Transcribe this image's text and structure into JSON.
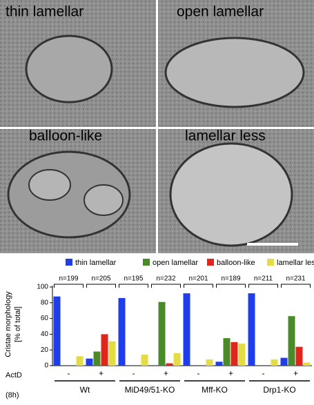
{
  "micrographs": {
    "labels": [
      "thin lamellar",
      "open lamellar",
      "balloon-like",
      "lamellar less"
    ]
  },
  "chart_data": {
    "type": "bar",
    "y_label": [
      "Cristae morphology",
      "[% of total]"
    ],
    "row_label": [
      "ActD",
      "(8h)"
    ],
    "categories": [
      "-",
      "+",
      "-",
      "+",
      "-",
      "+",
      "-",
      "+"
    ],
    "groups": [
      "Wt",
      "MiD49/51-KO",
      "Mff-KO",
      "Drp1-KO"
    ],
    "n_labels": [
      "n=199",
      "n=205",
      "n=195",
      "n=232",
      "n=201",
      "n=189",
      "n=211",
      "n=231"
    ],
    "series": [
      {
        "name": "thin lamellar",
        "color": "#1f3de8",
        "values": [
          88,
          9,
          86,
          0,
          92,
          5,
          92,
          10
        ]
      },
      {
        "name": "open lamellar",
        "color": "#4a8a2a",
        "values": [
          0,
          18,
          0,
          81,
          0,
          35,
          0,
          63
        ]
      },
      {
        "name": "balloon-like",
        "color": "#e0261a",
        "values": [
          0,
          40,
          0,
          3,
          0,
          30,
          0,
          24
        ]
      },
      {
        "name": "lamellar less",
        "color": "#e3dc45",
        "values": [
          12,
          31,
          14,
          16,
          8,
          28,
          8,
          4
        ]
      }
    ],
    "ylim": [
      0,
      100
    ],
    "yticks": [
      0,
      20,
      40,
      60,
      80,
      100
    ]
  }
}
